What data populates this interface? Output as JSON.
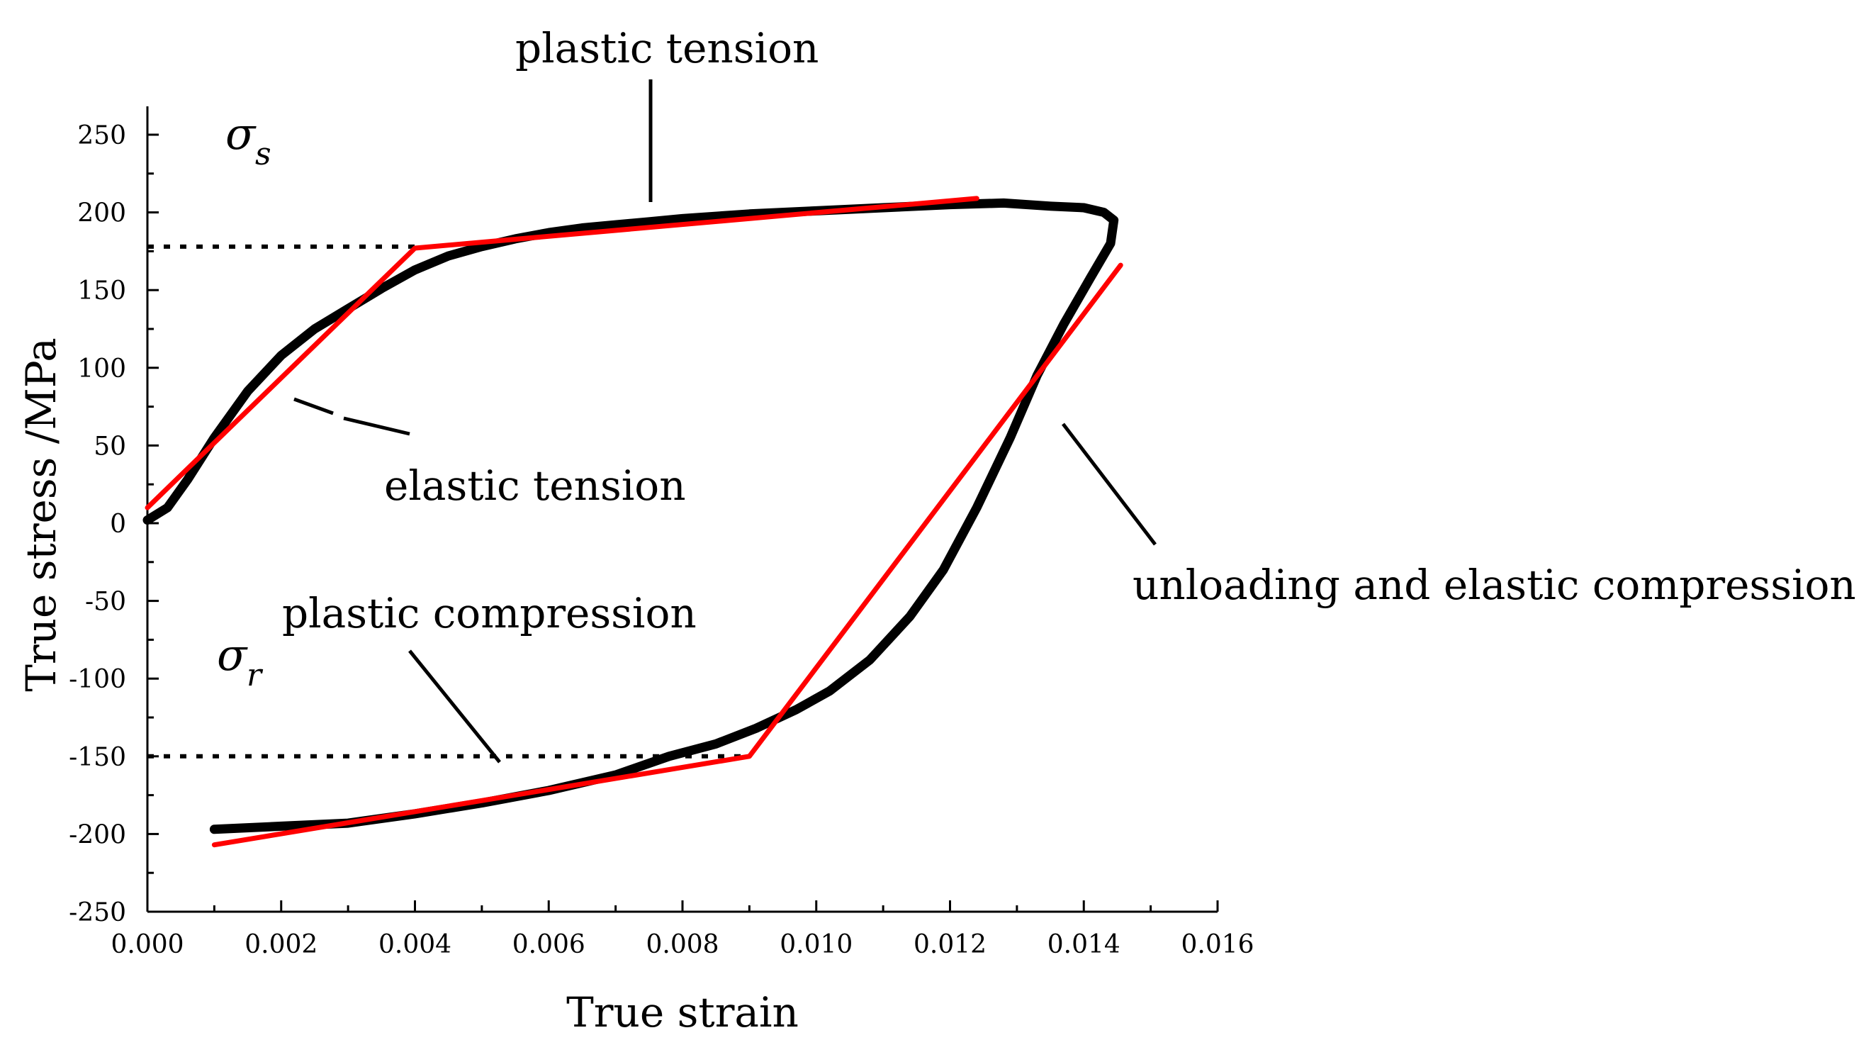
{
  "chart_data": {
    "type": "line",
    "xlabel": "True strain",
    "ylabel": "True stress /MPa",
    "xlim": [
      0,
      0.016
    ],
    "ylim": [
      -250,
      270
    ],
    "xticks": [
      "0.000",
      "0.002",
      "0.004",
      "0.006",
      "0.008",
      "0.010",
      "0.012",
      "0.014",
      "0.016"
    ],
    "yticks": [
      "-250",
      "-200",
      "-150",
      "-100",
      "-50",
      "0",
      "50",
      "100",
      "150",
      "200",
      "250"
    ],
    "grid": false,
    "series": [
      {
        "color": "#000000",
        "points": [
          [
            0.0,
            2
          ],
          [
            0.0003,
            10
          ],
          [
            0.0006,
            28
          ],
          [
            0.001,
            55
          ],
          [
            0.0015,
            85
          ],
          [
            0.002,
            108
          ],
          [
            0.0025,
            125
          ],
          [
            0.003,
            138
          ],
          [
            0.0035,
            151
          ],
          [
            0.004,
            163
          ],
          [
            0.0045,
            172
          ],
          [
            0.005,
            178
          ],
          [
            0.0055,
            183
          ],
          [
            0.006,
            187
          ],
          [
            0.0065,
            190
          ],
          [
            0.007,
            192
          ],
          [
            0.0075,
            194
          ],
          [
            0.008,
            196
          ],
          [
            0.009,
            199
          ],
          [
            0.01,
            201
          ],
          [
            0.011,
            203
          ],
          [
            0.012,
            205
          ],
          [
            0.0128,
            206
          ],
          [
            0.0135,
            204
          ],
          [
            0.014,
            203
          ],
          [
            0.0143,
            200
          ],
          [
            0.01445,
            195
          ],
          [
            0.0144,
            180
          ],
          [
            0.0141,
            158
          ],
          [
            0.0137,
            128
          ],
          [
            0.0133,
            95
          ],
          [
            0.0129,
            55
          ],
          [
            0.0124,
            10
          ],
          [
            0.0119,
            -30
          ],
          [
            0.0114,
            -60
          ],
          [
            0.0108,
            -88
          ],
          [
            0.0102,
            -108
          ],
          [
            0.0097,
            -120
          ],
          [
            0.0091,
            -132
          ],
          [
            0.0085,
            -142
          ],
          [
            0.0078,
            -150
          ],
          [
            0.007,
            -162
          ],
          [
            0.006,
            -172
          ],
          [
            0.005,
            -180
          ],
          [
            0.004,
            -187
          ],
          [
            0.003,
            -193
          ],
          [
            0.002,
            -195
          ],
          [
            0.001,
            -197
          ]
        ]
      },
      {
        "color": "#ff0000",
        "points": [
          [
            0.0,
            10
          ],
          [
            0.004,
            177
          ],
          [
            0.0124,
            209
          ]
        ]
      },
      {
        "color": "#ff0000",
        "points": [
          [
            0.001,
            -207
          ],
          [
            0.009,
            -150
          ],
          [
            0.01455,
            166
          ]
        ]
      }
    ],
    "reference_lines": [
      {
        "style": "dotted",
        "x": [
          0.0,
          0.004
        ],
        "y": 178
      },
      {
        "style": "dotted",
        "x": [
          0.0,
          0.009
        ],
        "y": -150
      }
    ],
    "annotations": {
      "plastic_tension": "plastic tension",
      "elastic_tension": "elastic tension",
      "plastic_compression": "plastic compression",
      "unloading": "unloading and elastic compression",
      "sigma_symbol": "σ",
      "sigma_s_sub": "s",
      "sigma_r_sub": "r"
    }
  }
}
